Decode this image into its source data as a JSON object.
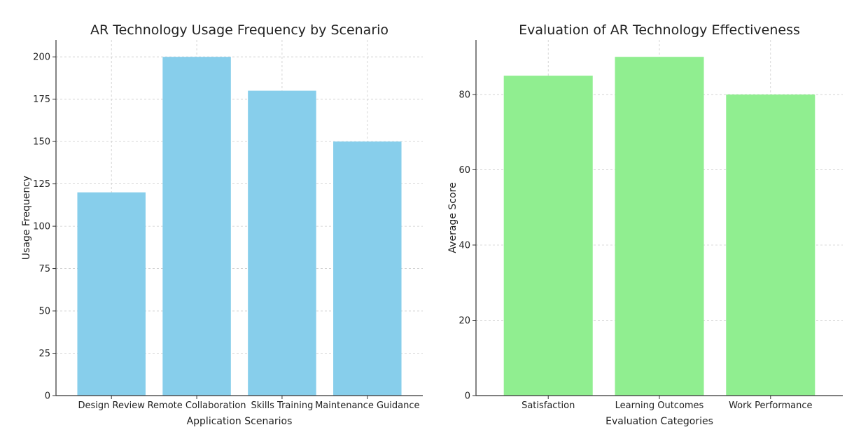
{
  "chart_data": [
    {
      "type": "bar",
      "title": "AR Technology Usage Frequency by Scenario",
      "xlabel": "Application Scenarios",
      "ylabel": "Usage Frequency",
      "categories": [
        "Design Review",
        "Remote Collaboration",
        "Skills Training",
        "Maintenance Guidance"
      ],
      "values": [
        120,
        200,
        180,
        150
      ],
      "ylim": [
        0,
        210
      ],
      "yticks": [
        0,
        25,
        50,
        75,
        100,
        125,
        150,
        175,
        200
      ],
      "color": "#87ceeb",
      "grid": true
    },
    {
      "type": "bar",
      "title": "Evaluation of AR Technology Effectiveness",
      "xlabel": "Evaluation Categories",
      "ylabel": "Average Score",
      "categories": [
        "Satisfaction",
        "Learning Outcomes",
        "Work Performance"
      ],
      "values": [
        85,
        90,
        80
      ],
      "ylim": [
        0,
        94.5
      ],
      "yticks": [
        0,
        20,
        40,
        60,
        80
      ],
      "color": "#90ee90",
      "grid": true
    }
  ]
}
